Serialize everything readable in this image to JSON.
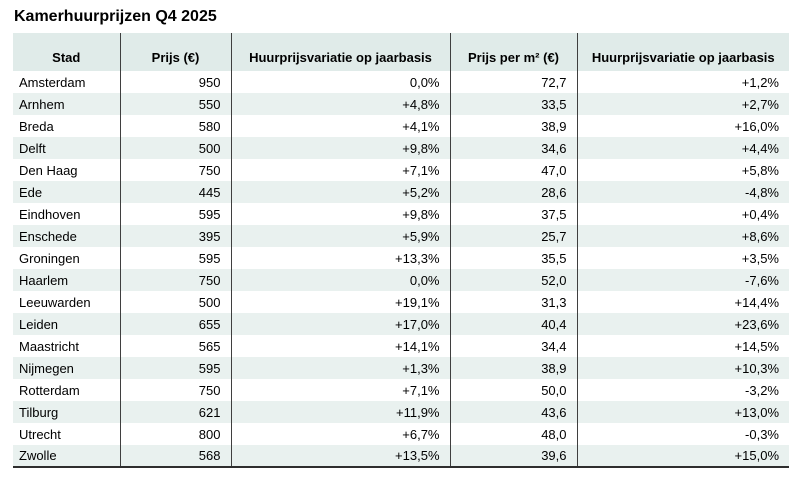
{
  "title": "Kamerhuurprijzen Q4 2025",
  "colors": {
    "header_bg": "#e0ebe9",
    "row_alt_bg": "#e9f1ef",
    "grid_line": "#3f3f3f",
    "bottom_border": "#2e2e2e",
    "text": "#000000"
  },
  "chart_data": {
    "type": "table",
    "title": "Kamerhuurprijzen Q4 2025",
    "columns": [
      "Stad",
      "Prijs (€)",
      "Huurprijsvariatie op jaarbasis",
      "Prijs per m² (€)",
      "Huurprijsvariatie op jaarbasis"
    ],
    "rows": [
      [
        "Amsterdam",
        "950",
        "0,0%",
        "72,7",
        "+1,2%"
      ],
      [
        "Arnhem",
        "550",
        "+4,8%",
        "33,5",
        "+2,7%"
      ],
      [
        "Breda",
        "580",
        "+4,1%",
        "38,9",
        "+16,0%"
      ],
      [
        "Delft",
        "500",
        "+9,8%",
        "34,6",
        "+4,4%"
      ],
      [
        "Den Haag",
        "750",
        "+7,1%",
        "47,0",
        "+5,8%"
      ],
      [
        "Ede",
        "445",
        "+5,2%",
        "28,6",
        "-4,8%"
      ],
      [
        "Eindhoven",
        "595",
        "+9,8%",
        "37,5",
        "+0,4%"
      ],
      [
        "Enschede",
        "395",
        "+5,9%",
        "25,7",
        "+8,6%"
      ],
      [
        "Groningen",
        "595",
        "+13,3%",
        "35,5",
        "+3,5%"
      ],
      [
        "Haarlem",
        "750",
        "0,0%",
        "52,0",
        "-7,6%"
      ],
      [
        "Leeuwarden",
        "500",
        "+19,1%",
        "31,3",
        "+14,4%"
      ],
      [
        "Leiden",
        "655",
        "+17,0%",
        "40,4",
        "+23,6%"
      ],
      [
        "Maastricht",
        "565",
        "+14,1%",
        "34,4",
        "+14,5%"
      ],
      [
        "Nijmegen",
        "595",
        "+1,3%",
        "38,9",
        "+10,3%"
      ],
      [
        "Rotterdam",
        "750",
        "+7,1%",
        "50,0",
        "-3,2%"
      ],
      [
        "Tilburg",
        "621",
        "+11,9%",
        "43,6",
        "+13,0%"
      ],
      [
        "Utrecht",
        "800",
        "+6,7%",
        "48,0",
        "-0,3%"
      ],
      [
        "Zwolle",
        "568",
        "+13,5%",
        "39,6",
        "+15,0%"
      ]
    ]
  }
}
